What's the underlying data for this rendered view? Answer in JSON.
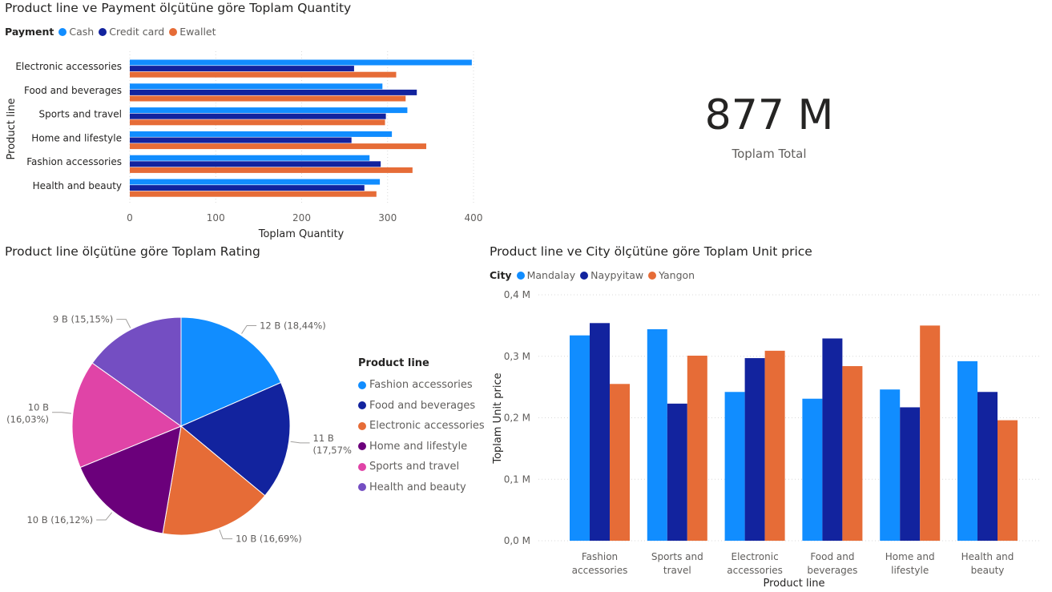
{
  "colors": {
    "cash": "#118dff",
    "credit": "#12239e",
    "ewallet": "#e66c37",
    "fashion": "#118dff",
    "food": "#12239e",
    "electronic": "#e66c37",
    "home": "#6b007b",
    "sports": "#e044a7",
    "health": "#744ec2",
    "grid": "#d9d9d9",
    "axis_text": "#605e5c"
  },
  "bar_panel": {
    "title": "Product line ve Payment ölçütüne göre Toplam Quantity",
    "legend_title": "Payment"
  },
  "kpi": {
    "value": "877 M",
    "label": "Toplam Total"
  },
  "pie_panel": {
    "title": "Product line ölçütüne göre Toplam Rating",
    "legend_title": "Product line"
  },
  "col_panel": {
    "title": "Product line ve City ölçütüne göre Toplam Unit price",
    "legend_title": "City"
  },
  "chart_data": [
    {
      "type": "bar",
      "orientation": "horizontal",
      "title": "Product line ve Payment ölçütüne göre Toplam Quantity",
      "xlabel": "Toplam Quantity",
      "ylabel": "Product line",
      "xlim": [
        0,
        400
      ],
      "xticks": [
        "0",
        "100",
        "200",
        "300",
        "400"
      ],
      "categories": [
        "Electronic accessories",
        "Food and beverages",
        "Sports and travel",
        "Home and lifestyle",
        "Fashion accessories",
        "Health and beauty"
      ],
      "series": [
        {
          "name": "Cash",
          "values": [
            398,
            294,
            323,
            305,
            279,
            291
          ]
        },
        {
          "name": "Credit card",
          "values": [
            261,
            334,
            298,
            258,
            292,
            273
          ]
        },
        {
          "name": "Ewallet",
          "values": [
            310,
            321,
            297,
            345,
            329,
            287
          ]
        }
      ],
      "legend": "top-left",
      "grid": true
    },
    {
      "type": "pie",
      "title": "Product line ölçütüne göre Toplam Rating",
      "legend_title": "Product line",
      "slices": [
        {
          "name": "Fashion accessories",
          "value": 18.44,
          "label": "12 B (18,44%)"
        },
        {
          "name": "Food and beverages",
          "value": 17.57,
          "label": "11 B (17,57%)"
        },
        {
          "name": "Electronic accessories",
          "value": 16.69,
          "label": "10 B (16,69%)"
        },
        {
          "name": "Home and lifestyle",
          "value": 16.12,
          "label": "10 B (16,12%)"
        },
        {
          "name": "Sports and travel",
          "value": 16.03,
          "label": "10 B (16,03%)"
        },
        {
          "name": "Health and beauty",
          "value": 15.15,
          "label": "9 B (15,15%)"
        }
      ],
      "legend": "right"
    },
    {
      "type": "bar",
      "orientation": "vertical",
      "title": "Product line ve City ölçütüne göre Toplam Unit price",
      "xlabel": "Product line",
      "ylabel": "Toplam Unit price",
      "ylim": [
        0,
        0.4
      ],
      "yticks": [
        "0,0 M",
        "0,1 M",
        "0,2 M",
        "0,3 M",
        "0,4 M"
      ],
      "categories": [
        "Fashion accessories",
        "Sports and travel",
        "Electronic accessories",
        "Food and beverages",
        "Home and lifestyle",
        "Health and beauty"
      ],
      "category_lines": [
        [
          "Fashion",
          "accessories"
        ],
        [
          "Sports and",
          "travel"
        ],
        [
          "Electronic",
          "accessories"
        ],
        [
          "Food and",
          "beverages"
        ],
        [
          "Home and",
          "lifestyle"
        ],
        [
          "Health and",
          "beauty"
        ]
      ],
      "series": [
        {
          "name": "Mandalay",
          "values": [
            0.334,
            0.344,
            0.242,
            0.231,
            0.246,
            0.292
          ]
        },
        {
          "name": "Naypyitaw",
          "values": [
            0.354,
            0.223,
            0.297,
            0.329,
            0.217,
            0.242
          ]
        },
        {
          "name": "Yangon",
          "values": [
            0.255,
            0.301,
            0.309,
            0.284,
            0.35,
            0.196
          ]
        }
      ],
      "legend": "top-left",
      "grid": true
    }
  ]
}
